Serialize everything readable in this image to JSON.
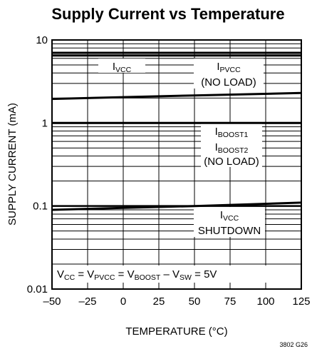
{
  "chart_data": {
    "type": "line",
    "title": "Supply Current vs Temperature",
    "xlabel": "TEMPERATURE (°C)",
    "ylabel": "SUPPLY CURRENT (mA)",
    "x_scale": "linear",
    "y_scale": "log",
    "xlim": [
      -50,
      125
    ],
    "ylim": [
      0.01,
      10
    ],
    "x_ticks": [
      -50,
      -25,
      0,
      25,
      50,
      75,
      100,
      125
    ],
    "x_tick_labels": [
      "–50",
      "–25",
      "0",
      "25",
      "50",
      "75",
      "100",
      "125"
    ],
    "y_ticks": [
      0.01,
      0.1,
      1,
      10
    ],
    "y_tick_labels": [
      "0.01",
      "0.1",
      "1",
      "10"
    ],
    "grid": true,
    "series": [
      {
        "name": "IVCC",
        "x": [
          -50,
          125
        ],
        "values": [
          7.0,
          7.0
        ]
      },
      {
        "name": "IPVCC (NO LOAD)",
        "x": [
          -50,
          125
        ],
        "values": [
          6.5,
          6.5
        ]
      },
      {
        "name": "IBOOST1",
        "x": [
          -50,
          0,
          50,
          125
        ],
        "values": [
          1.95,
          2.05,
          2.15,
          2.3
        ]
      },
      {
        "name": "IBOOST2 (NO LOAD)",
        "x": [
          -50,
          125
        ],
        "values": [
          1.0,
          1.0
        ]
      },
      {
        "name": "IVCC SHUTDOWN",
        "x": [
          -50,
          0,
          50,
          125
        ],
        "values": [
          0.09,
          0.095,
          0.1,
          0.11
        ]
      }
    ],
    "annotations": {
      "ivcc": {
        "main": "I",
        "sub": "VCC"
      },
      "ipvcc": {
        "main": "I",
        "sub": "PVCC",
        "line2": "(NO LOAD)"
      },
      "iboost1": {
        "main": "I",
        "sub": "BOOST1"
      },
      "iboost2": {
        "main": "I",
        "sub": "BOOST2",
        "line2": "(NO LOAD)"
      },
      "ivcc_shdn": {
        "main": "I",
        "sub": "VCC",
        "line2": "SHUTDOWN"
      },
      "condition": {
        "p1": "V",
        "s1": "CC",
        "p2": " = V",
        "s2": "PVCC",
        "p3": " = V",
        "s3": "BOOST",
        "p4": " – V",
        "s4": "SW",
        "p5": " = 5V"
      }
    },
    "figure_code": "3802 G26"
  }
}
